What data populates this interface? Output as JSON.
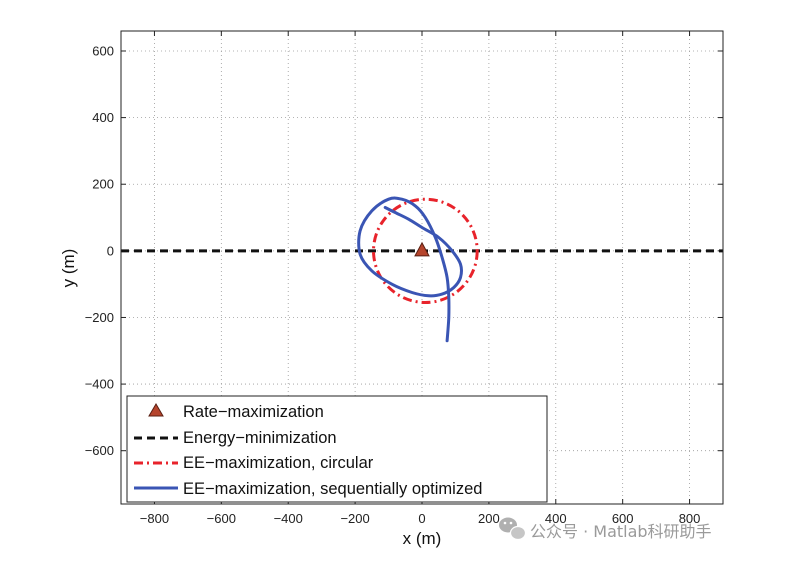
{
  "chart_data": {
    "type": "line",
    "xlabel": "x (m)",
    "ylabel": "y (m)",
    "xlim": [
      -900,
      900
    ],
    "ylim": [
      -760,
      660
    ],
    "xticks": [
      -800,
      -600,
      -400,
      -200,
      0,
      200,
      400,
      600,
      800
    ],
    "yticks": [
      -600,
      -400,
      -200,
      0,
      200,
      400,
      600
    ],
    "xtick_labels": [
      "−800",
      "−600",
      "−400",
      "−200",
      "0",
      "200",
      "400",
      "600",
      "800"
    ],
    "ytick_labels": [
      "−600",
      "−400",
      "−200",
      "0",
      "200",
      "400",
      "600"
    ],
    "grid": true,
    "legend_position": "bottom-left",
    "series": [
      {
        "name": "Rate−maximization",
        "style": "marker-triangle",
        "color": "#b5442c",
        "points": [
          [
            0,
            0
          ]
        ]
      },
      {
        "name": "Energy−minimization",
        "style": "dashed",
        "color": "#111111",
        "points": [
          [
            -900,
            0
          ],
          [
            900,
            0
          ]
        ]
      },
      {
        "name": "EE−maximization, circular",
        "style": "dash-dot",
        "color": "#e8232b",
        "circle": {
          "center": [
            10,
            0
          ],
          "radius": 155
        }
      },
      {
        "name": "EE−maximization, sequentially optimized",
        "style": "solid",
        "color": "#3a55b4",
        "points": [
          [
            -110,
            130
          ],
          [
            -80,
            115
          ],
          [
            -40,
            95
          ],
          [
            0,
            70
          ],
          [
            50,
            40
          ],
          [
            90,
            0
          ],
          [
            115,
            -40
          ],
          [
            115,
            -80
          ],
          [
            95,
            -110
          ],
          [
            60,
            -130
          ],
          [
            20,
            -135
          ],
          [
            -30,
            -125
          ],
          [
            -90,
            -100
          ],
          [
            -150,
            -60
          ],
          [
            -185,
            -10
          ],
          [
            -185,
            60
          ],
          [
            -150,
            120
          ],
          [
            -100,
            155
          ],
          [
            -60,
            155
          ],
          [
            -20,
            135
          ],
          [
            10,
            100
          ],
          [
            40,
            40
          ],
          [
            60,
            -20
          ],
          [
            75,
            -80
          ],
          [
            80,
            -140
          ],
          [
            80,
            -200
          ],
          [
            75,
            -270
          ]
        ]
      }
    ]
  },
  "watermark": {
    "icon": "wechat-icon",
    "text": "公众号 · Matlab科研助手"
  }
}
